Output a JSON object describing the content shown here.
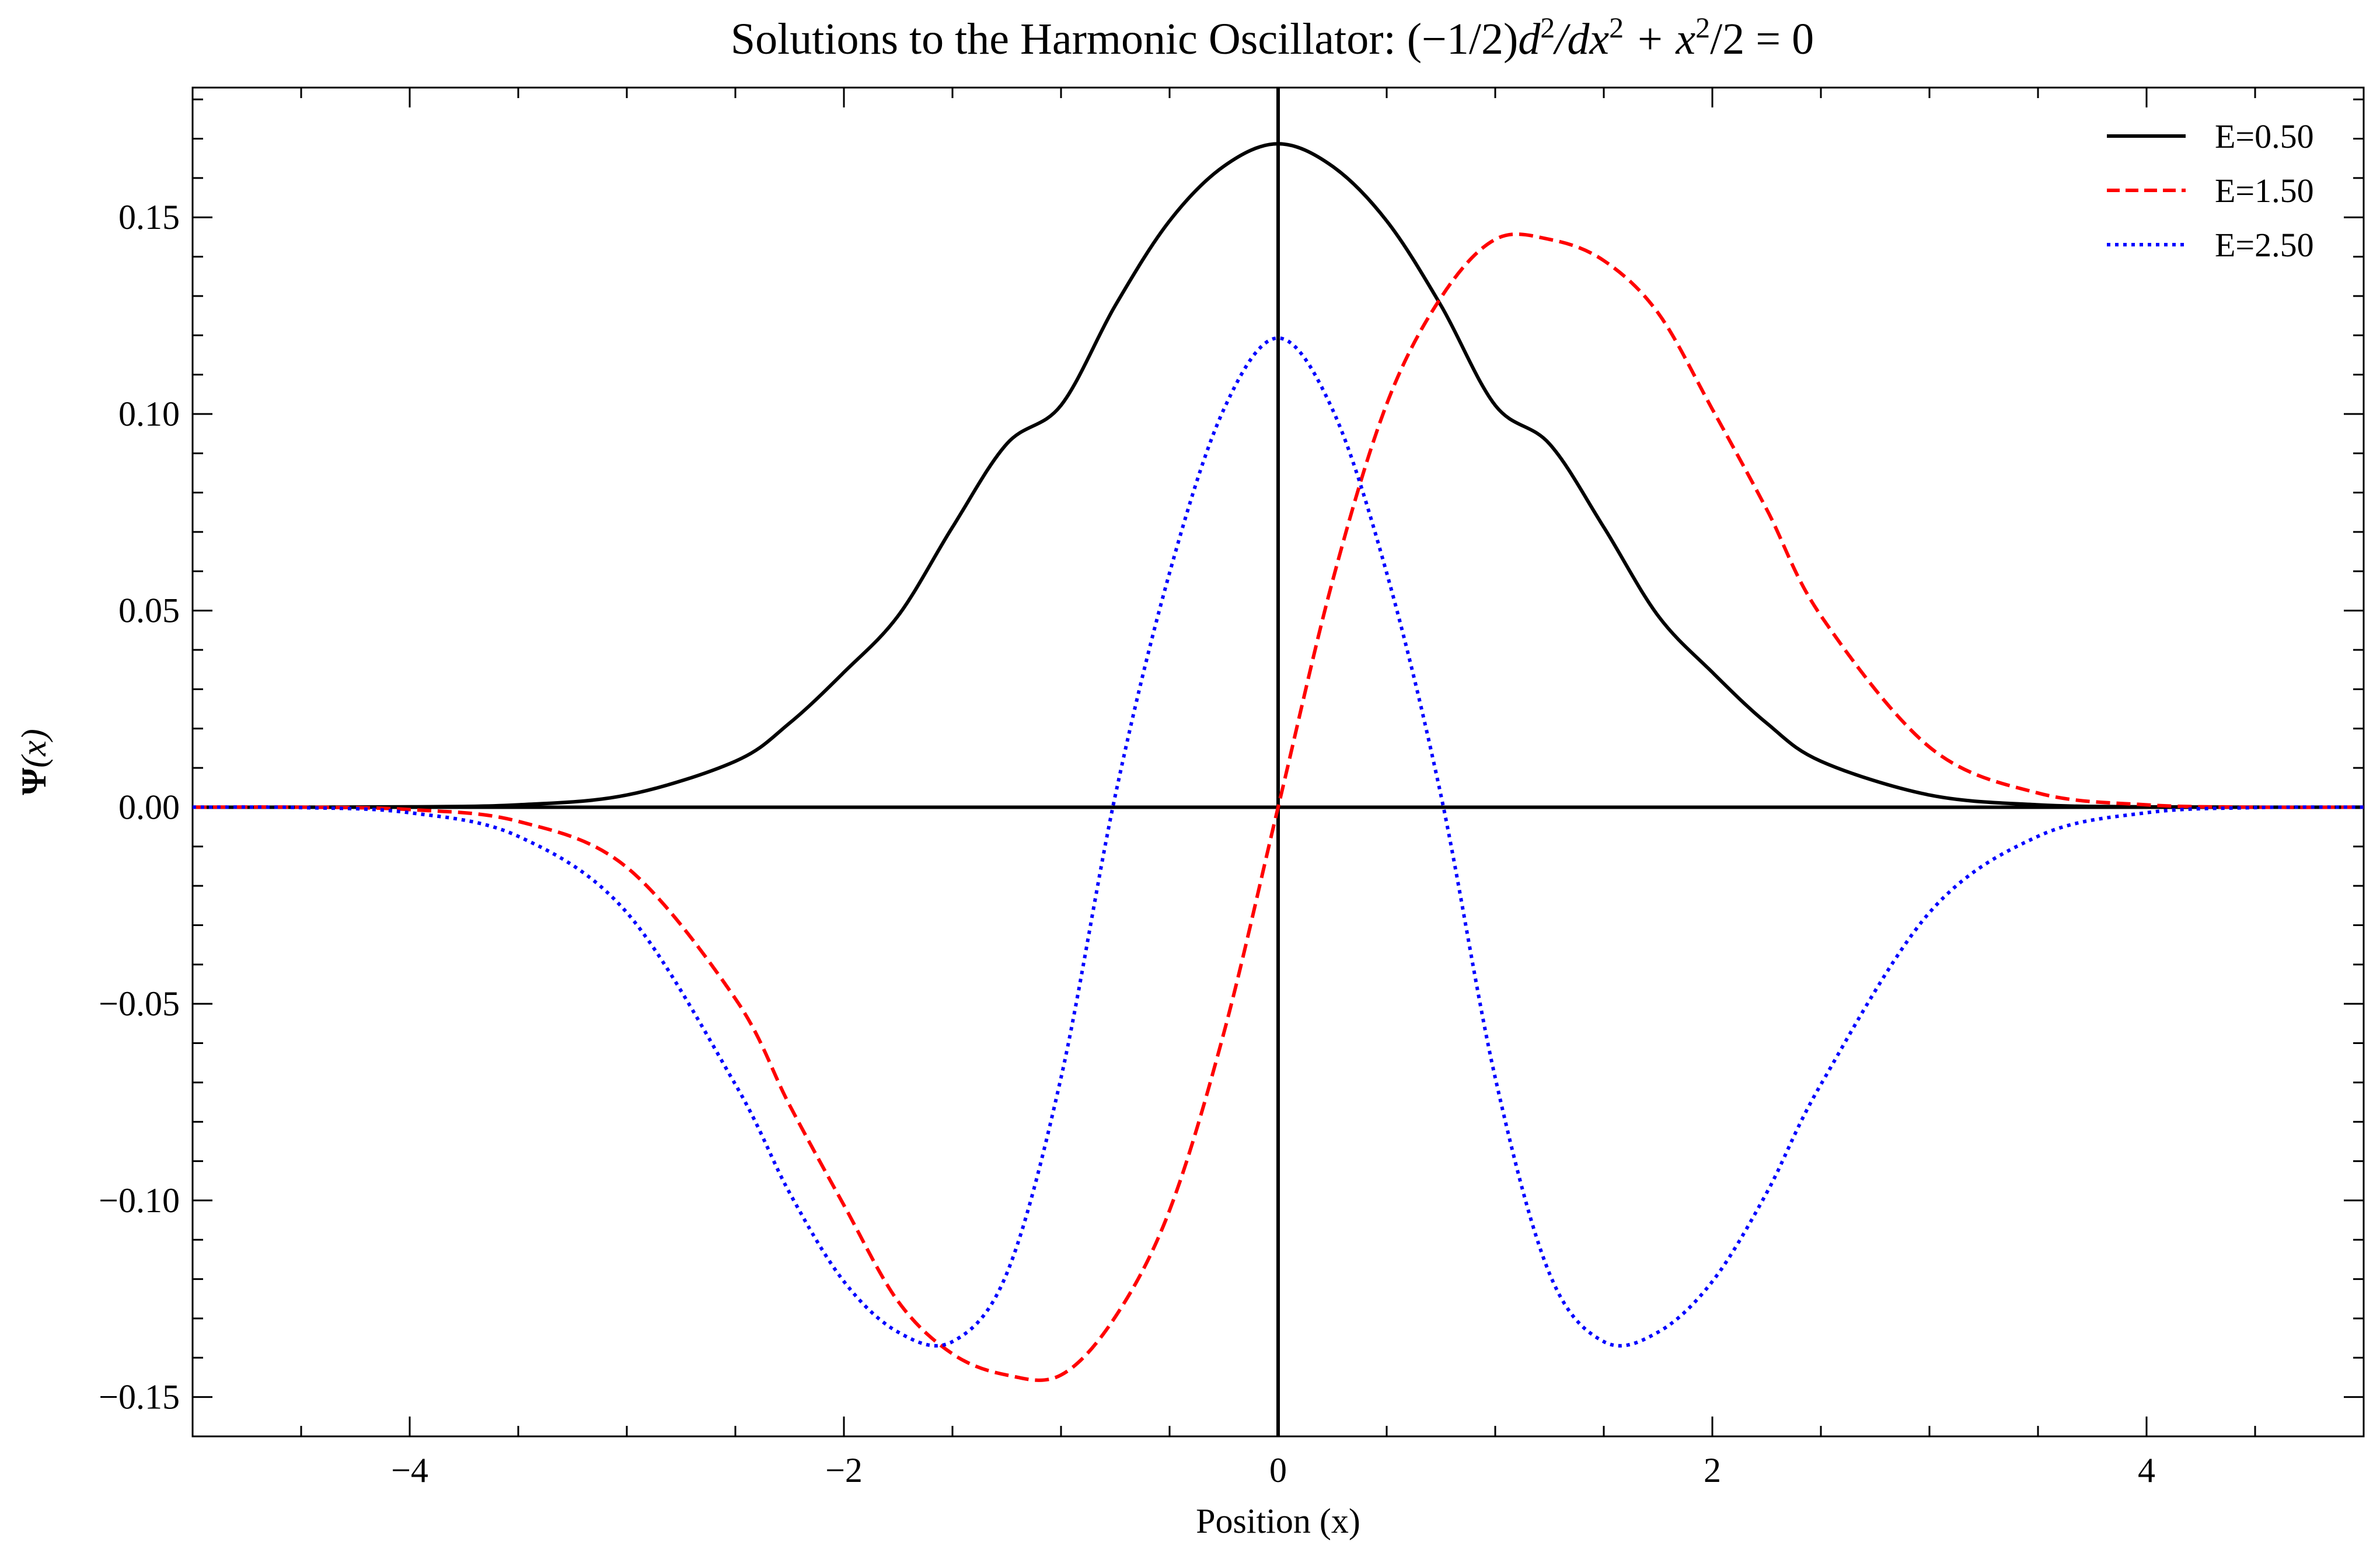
{
  "chart_data": {
    "type": "line",
    "title": "Solutions to the Harmonic Oscillator: (−1/2)d²/dx² + x²/2 = 0",
    "title_parts": {
      "prefix": "Solutions to the Harmonic Oscillator: ",
      "open": "(−1/2)",
      "d": "d",
      "sup2": "2",
      "slash_dx": "/dx",
      "plus_x": " + x",
      "slash2": "/2 = 0"
    },
    "xlabel": "Position (x)",
    "ylabel": "Ψ(x)",
    "ylabel_parts": {
      "psi": "Ψ",
      "paren": "(x)"
    },
    "xlim": [
      -5,
      5
    ],
    "ylim": [
      -0.16,
      0.183
    ],
    "x_ticks": [
      -4,
      -2,
      0,
      2,
      4
    ],
    "x_tick_labels": [
      "−4",
      "−2",
      "0",
      "2",
      "4"
    ],
    "y_ticks": [
      -0.15,
      -0.1,
      -0.05,
      0.0,
      0.05,
      0.1,
      0.15
    ],
    "y_tick_labels": [
      "−0.15",
      "−0.10",
      "−0.05",
      "0.00",
      "0.05",
      "0.10",
      "0.15"
    ],
    "grid": false,
    "legend_position": "top-right",
    "reference_lines": {
      "horizontal_y": 0,
      "vertical_x": 0
    },
    "x": [
      -5.0,
      -4.5,
      -4.0,
      -3.5,
      -3.0,
      -2.5,
      -2.25,
      -2.0,
      -1.75,
      -1.5,
      -1.25,
      -1.0,
      -0.75,
      -0.5,
      -0.25,
      0.0,
      0.25,
      0.5,
      0.75,
      1.0,
      1.25,
      1.5,
      1.75,
      2.0,
      2.25,
      2.5,
      3.0,
      3.5,
      4.0,
      4.5,
      5.0
    ],
    "series": [
      {
        "name": "E=0.50",
        "color": "#000000",
        "style": "solid",
        "values": [
          0.0,
          0.0,
          0.0001,
          0.0006,
          0.0031,
          0.0117,
          0.0214,
          0.0343,
          0.0487,
          0.0712,
          0.0924,
          0.1022,
          0.1276,
          0.1491,
          0.163,
          0.1687,
          0.163,
          0.1491,
          0.1276,
          0.1022,
          0.0924,
          0.0712,
          0.0487,
          0.0343,
          0.0214,
          0.0117,
          0.0031,
          0.0006,
          0.0001,
          0.0,
          0.0
        ]
      },
      {
        "name": "E=1.50",
        "color": "#ff0000",
        "style": "dashed",
        "values": [
          0.0,
          0.0,
          -0.0006,
          -0.0036,
          -0.0153,
          -0.0487,
          -0.0758,
          -0.1012,
          -0.1257,
          -0.139,
          -0.1444,
          -0.1444,
          -0.1296,
          -0.1025,
          -0.0574,
          0.0,
          0.0574,
          0.1025,
          0.1296,
          0.1444,
          0.1444,
          0.139,
          0.1257,
          0.1012,
          0.0758,
          0.0487,
          0.0153,
          0.0036,
          0.0006,
          0.0,
          0.0
        ]
      },
      {
        "name": "E=2.50",
        "color": "#0000ff",
        "style": "dotted",
        "values": [
          0.0,
          -0.0001,
          -0.0014,
          -0.0074,
          -0.0268,
          -0.0705,
          -0.0981,
          -0.1206,
          -0.1335,
          -0.1359,
          -0.1186,
          -0.0688,
          0.003,
          0.0596,
          0.1012,
          0.1193,
          0.1012,
          0.0596,
          0.003,
          -0.0688,
          -0.1186,
          -0.1359,
          -0.1335,
          -0.1206,
          -0.0981,
          -0.0705,
          -0.0268,
          -0.0074,
          -0.0014,
          -0.0001,
          0.0
        ]
      }
    ]
  }
}
